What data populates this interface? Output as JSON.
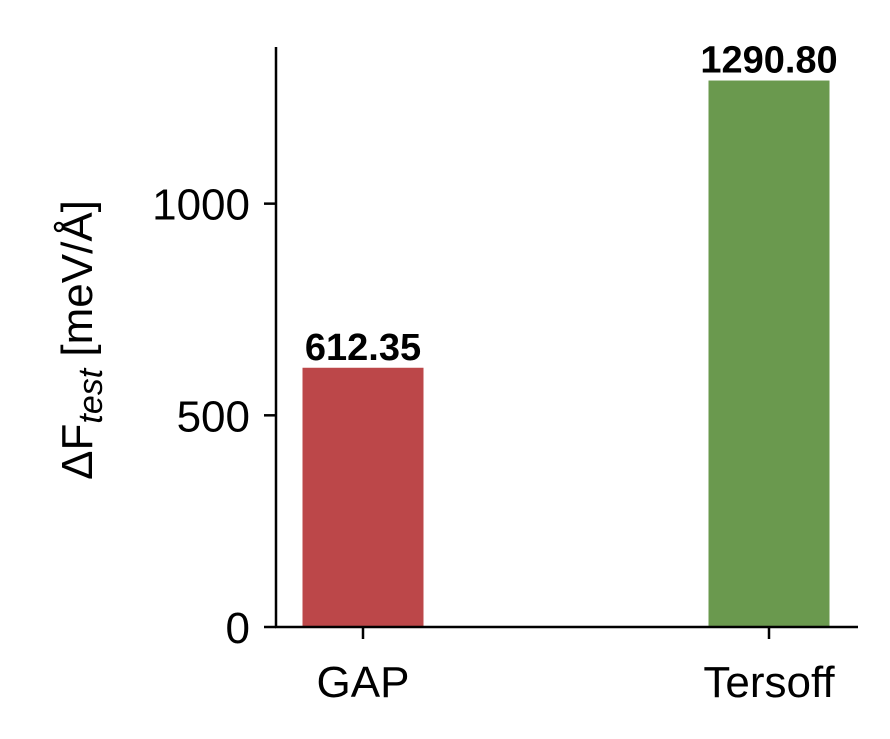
{
  "chart_data": {
    "type": "bar",
    "categories": [
      "GAP",
      "Tersoff"
    ],
    "values": [
      612.35,
      1290.8
    ],
    "data_labels": [
      "612.35",
      "1290.80"
    ],
    "colors": [
      "#bc4749",
      "#6a994e"
    ],
    "ylabel": {
      "main": "ΔF",
      "sub": "test",
      "unit": " [meV/Å]"
    },
    "xlabel": "",
    "title": "",
    "ylim": [
      0,
      1370
    ],
    "yticks": [
      0,
      500,
      1000
    ],
    "ytick_labels": [
      "0",
      "500",
      "1000"
    ],
    "grid": false,
    "legend": "none"
  }
}
